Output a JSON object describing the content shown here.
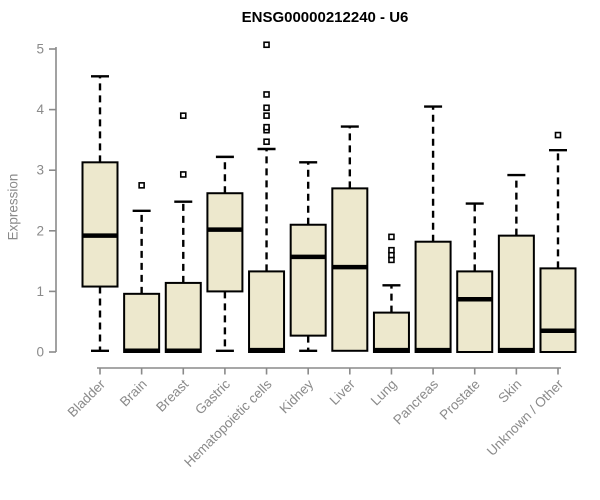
{
  "page": {
    "background": "#ffffff"
  },
  "chart_data": {
    "type": "boxplot",
    "title": "ENSG00000212240 - U6",
    "ylabel": "Expression",
    "xlabel": "",
    "ylim": [
      0,
      5
    ],
    "yticks": [
      0,
      1,
      2,
      3,
      4,
      5
    ],
    "grid": false,
    "legend": false,
    "axis_color": "#8a8a8a",
    "box_fill": "#ede8cd",
    "box_stroke": "#000000",
    "median_color": "#000000",
    "outlier_shape": "open-square",
    "categories": [
      "Bladder",
      "Brain",
      "Breast",
      "Gastric",
      "Hematopoietic cells",
      "Kidney",
      "Liver",
      "Lung",
      "Pancreas",
      "Prostate",
      "Skin",
      "Unknown / Other"
    ],
    "series": [
      {
        "name": "Bladder",
        "low": 0.02,
        "q1": 1.08,
        "median": 1.92,
        "q3": 3.13,
        "high": 4.55,
        "outliers": []
      },
      {
        "name": "Brain",
        "low": 0,
        "q1": 0,
        "median": 0.02,
        "q3": 0.96,
        "high": 2.33,
        "outliers": [
          2.75
        ]
      },
      {
        "name": "Breast",
        "low": 0,
        "q1": 0,
        "median": 0.02,
        "q3": 1.14,
        "high": 2.48,
        "outliers": [
          2.93,
          3.9
        ]
      },
      {
        "name": "Gastric",
        "low": 0.02,
        "q1": 1.0,
        "median": 2.02,
        "q3": 2.62,
        "high": 3.22,
        "outliers": []
      },
      {
        "name": "Hematopoietic cells",
        "low": 0,
        "q1": 0,
        "median": 0.03,
        "q3": 1.33,
        "high": 3.35,
        "outliers": [
          3.47,
          3.66,
          3.71,
          3.9,
          4.03,
          4.25,
          5.07
        ]
      },
      {
        "name": "Kidney",
        "low": 0.02,
        "q1": 0.27,
        "median": 1.57,
        "q3": 2.1,
        "high": 3.13,
        "outliers": []
      },
      {
        "name": "Liver",
        "low": 0,
        "q1": 0.02,
        "median": 1.4,
        "q3": 2.7,
        "high": 3.72,
        "outliers": []
      },
      {
        "name": "Lung",
        "low": 0,
        "q1": 0,
        "median": 0.03,
        "q3": 0.65,
        "high": 1.1,
        "outliers": [
          1.52,
          1.6,
          1.68,
          1.9
        ]
      },
      {
        "name": "Pancreas",
        "low": 0,
        "q1": 0,
        "median": 0.03,
        "q3": 1.82,
        "high": 4.05,
        "outliers": []
      },
      {
        "name": "Prostate",
        "low": 0,
        "q1": 0,
        "median": 0.87,
        "q3": 1.33,
        "high": 2.45,
        "outliers": []
      },
      {
        "name": "Skin",
        "low": 0,
        "q1": 0,
        "median": 0.03,
        "q3": 1.92,
        "high": 2.92,
        "outliers": []
      },
      {
        "name": "Unknown / Other",
        "low": 0,
        "q1": 0,
        "median": 0.35,
        "q3": 1.38,
        "high": 3.33,
        "outliers": [
          3.58
        ]
      }
    ]
  }
}
